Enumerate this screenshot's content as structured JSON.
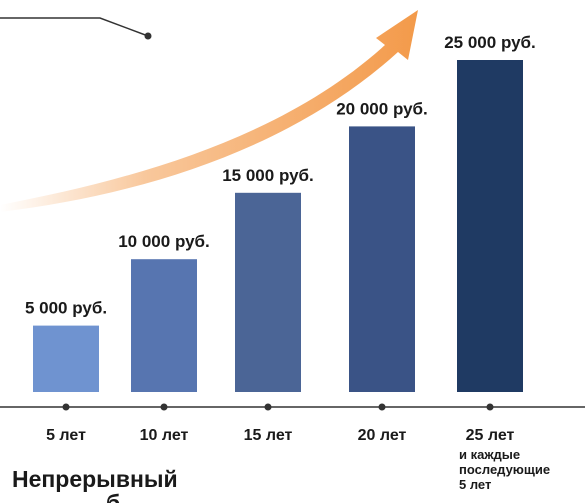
{
  "chart_data": {
    "type": "bar",
    "categories": [
      "5 лет",
      "10 лет",
      "15 лет",
      "20 лет",
      "25 лет"
    ],
    "values": [
      5000,
      10000,
      15000,
      20000,
      25000
    ],
    "value_labels": [
      "5 000 руб.",
      "10 000 руб.",
      "15 000 руб.",
      "20 000 руб.",
      "25 000 руб."
    ],
    "last_category_note": [
      "и каждые",
      "последующие",
      "5 лет"
    ],
    "ylim": [
      0,
      25000
    ],
    "grid": false,
    "bar_colors": [
      "#6f93d0",
      "#5775b0",
      "#4b6596",
      "#3a5386",
      "#1f3a63"
    ],
    "trend_arrow_color": "#f39a4a",
    "axis_color": "#333333"
  },
  "caption": {
    "text": "Непрерывный",
    "fragment": "б"
  }
}
